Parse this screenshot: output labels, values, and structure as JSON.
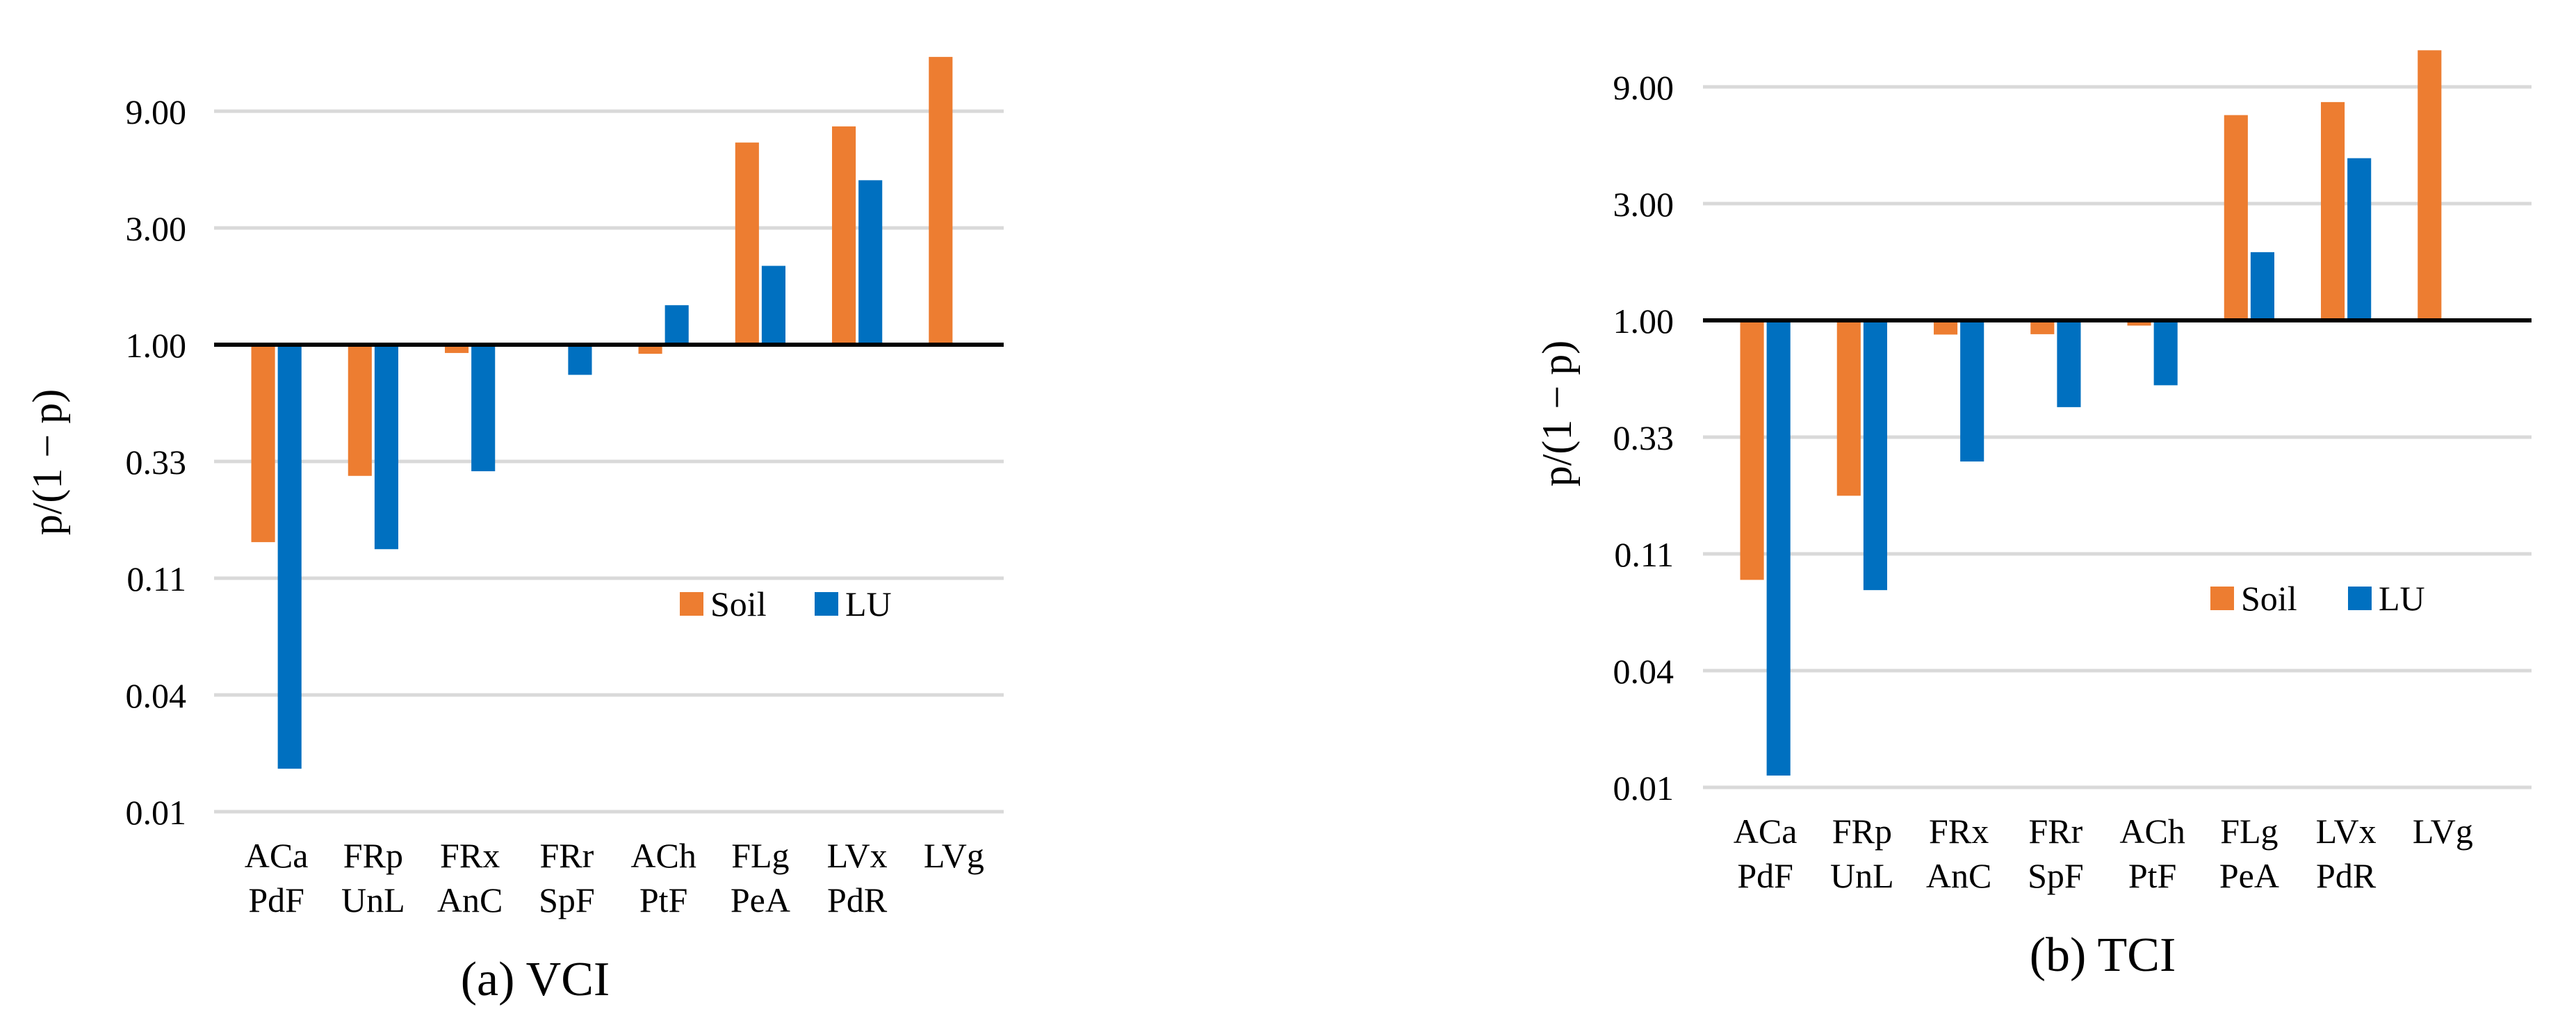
{
  "colors": {
    "soil": "#ED7D31",
    "lu": "#0070C0",
    "grid": "#D9D9D9",
    "baseline": "#000000"
  },
  "chart_data": [
    {
      "type": "bar",
      "scale": "log3",
      "panel": "a",
      "caption": "(a) VCI",
      "ylabel": "p/(1 − p)",
      "xlabel": "",
      "yticks": [
        "0.01",
        "0.04",
        "0.11",
        "0.33",
        "1.00",
        "3.00",
        "9.00"
      ],
      "ylim": [
        0.0123,
        20
      ],
      "baseline_value": 1.0,
      "legend": {
        "position": "center-right",
        "entries": [
          "Soil",
          "LU"
        ]
      },
      "categories": [
        [
          "ACa",
          "PdF"
        ],
        [
          "FRp",
          "UnL"
        ],
        [
          "FRx",
          "AnC"
        ],
        [
          "FRr",
          "SpF"
        ],
        [
          "ACh",
          "PtF"
        ],
        [
          "FLg",
          "PeA"
        ],
        [
          "LVx",
          "PdR"
        ],
        [
          "LVg"
        ]
      ],
      "series": [
        {
          "name": "Soil",
          "values": [
            0.156,
            0.291,
            0.925,
            0.995,
            0.918,
            6.7,
            7.8,
            15.0
          ]
        },
        {
          "name": "LU",
          "values": [
            0.0185,
            0.146,
            0.304,
            0.753,
            1.45,
            2.1,
            4.7,
            null
          ]
        }
      ]
    },
    {
      "type": "bar",
      "scale": "log3",
      "panel": "b",
      "caption": "(b) TCI",
      "ylabel": "p/(1 − p)",
      "xlabel": "",
      "yticks": [
        "0.01",
        "0.04",
        "0.11",
        "0.33",
        "1.00",
        "3.00",
        "9.00"
      ],
      "ylim": [
        0.0123,
        15
      ],
      "baseline_value": 1.0,
      "legend": {
        "position": "center-right",
        "entries": [
          "Soil",
          "LU"
        ]
      },
      "categories": [
        [
          "ACa",
          "PdF"
        ],
        [
          "FRp",
          "UnL"
        ],
        [
          "FRx",
          "AnC"
        ],
        [
          "FRr",
          "SpF"
        ],
        [
          "ACh",
          "PtF"
        ],
        [
          "FLg",
          "PeA"
        ],
        [
          "LVx",
          "PdR"
        ],
        [
          "LVg"
        ]
      ],
      "series": [
        {
          "name": "Soil",
          "values": [
            0.087,
            0.192,
            0.875,
            0.878,
            0.952,
            6.9,
            7.8,
            12.7
          ]
        },
        {
          "name": "LU",
          "values": [
            0.0138,
            0.079,
            0.265,
            0.442,
            0.543,
            1.9,
            4.6,
            null
          ]
        }
      ]
    }
  ]
}
